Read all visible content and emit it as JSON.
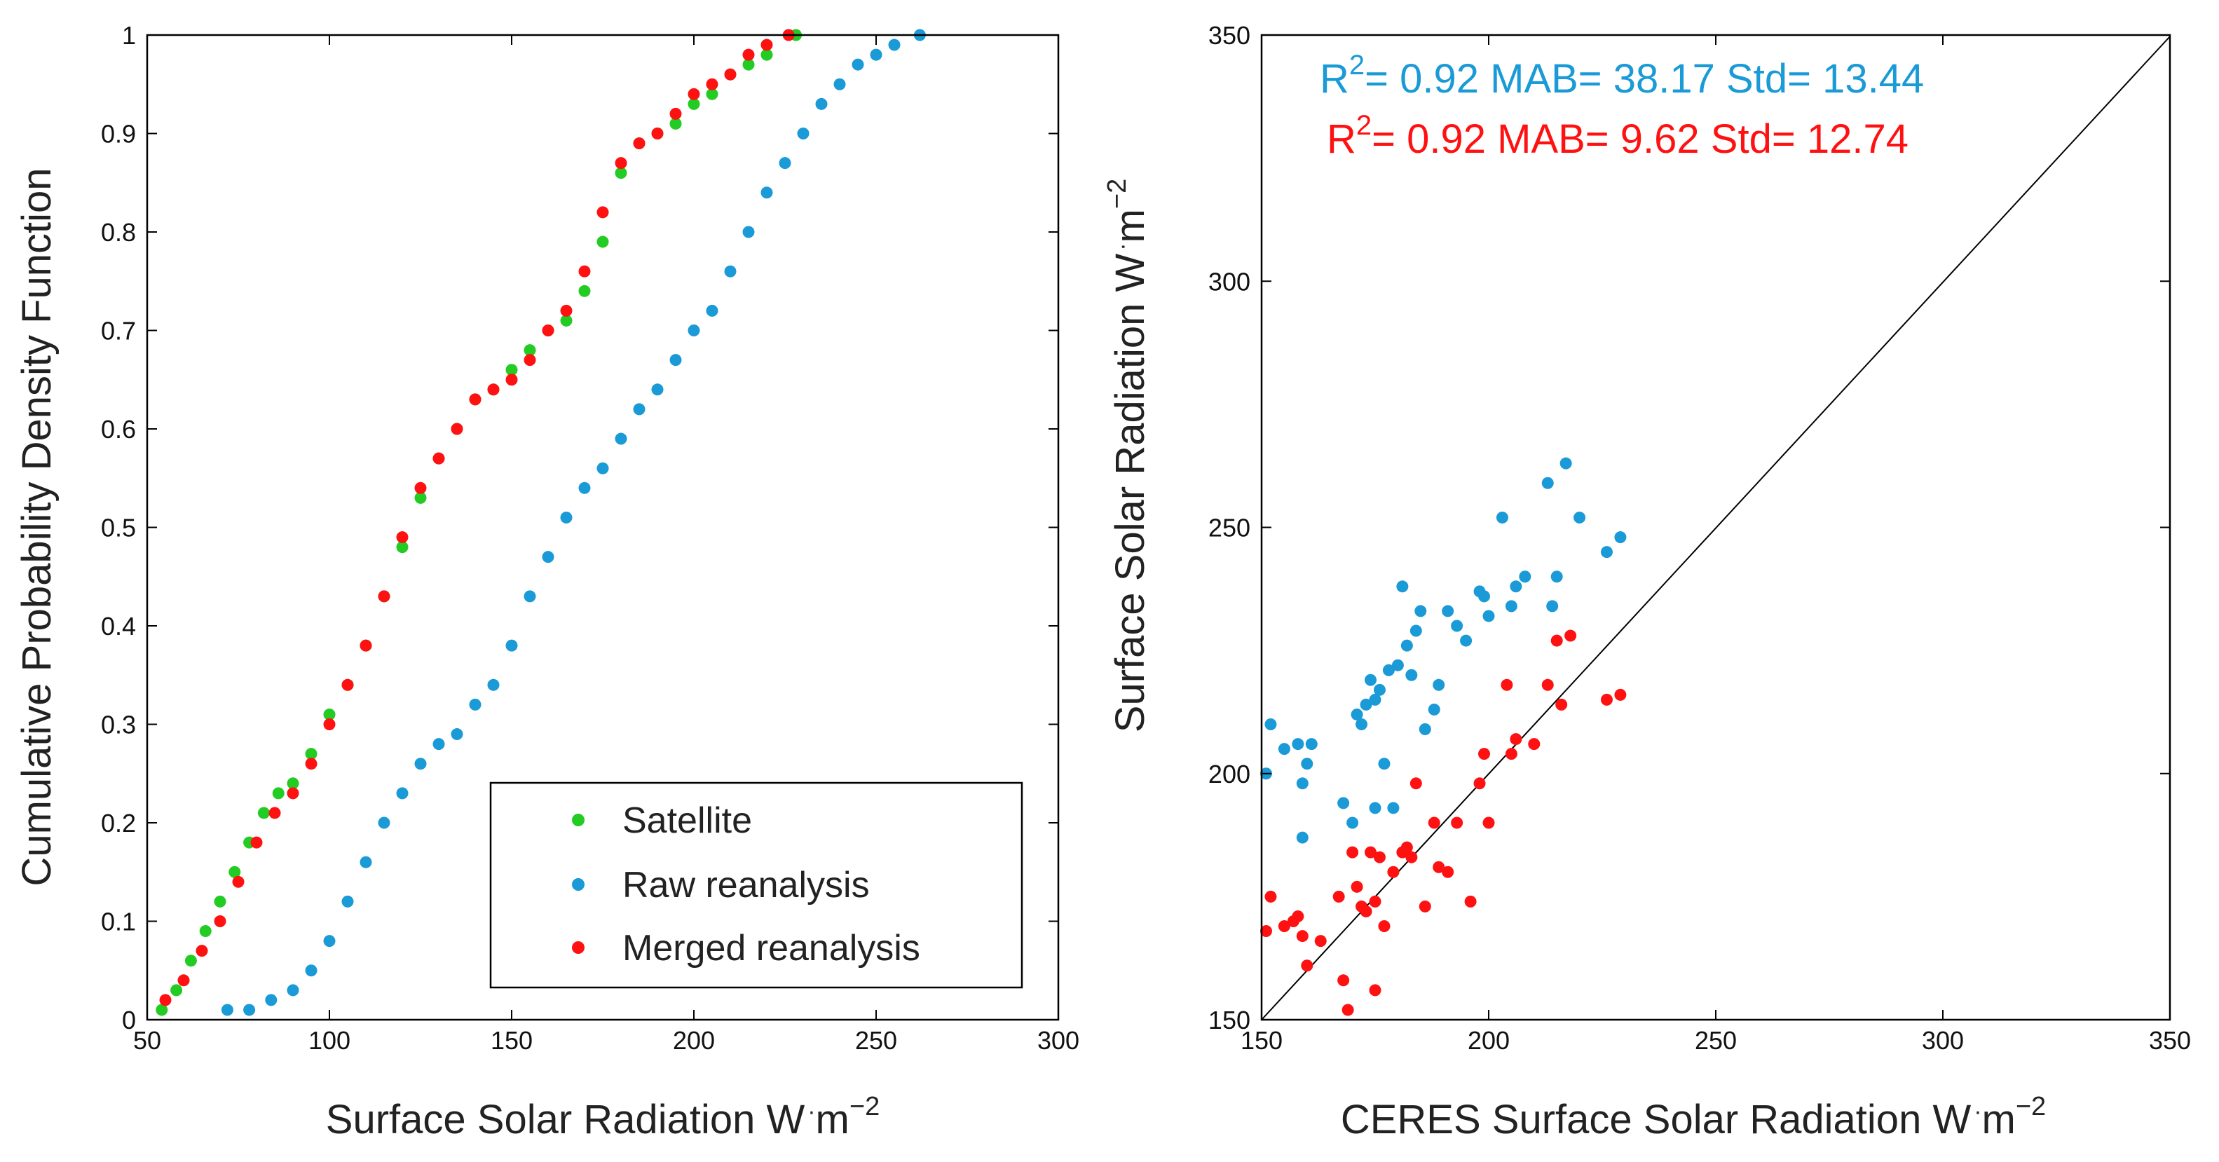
{
  "chart_data": [
    {
      "type": "scatter",
      "subtype": "cumulative-distribution",
      "title": "",
      "xlabel": "Surface Solar Radiation W",
      "xlabel_unit_dot": "·",
      "xlabel_unit_base": "m",
      "xlabel_unit_exp": "−2",
      "ylabel": "Cumulative Probability Density Function",
      "xlim": [
        50,
        300
      ],
      "ylim": [
        0,
        1
      ],
      "xticks": [
        "50",
        "100",
        "150",
        "200",
        "250",
        "300"
      ],
      "yticks": [
        "0",
        "0.1",
        "0.2",
        "0.3",
        "0.4",
        "0.5",
        "0.6",
        "0.7",
        "0.8",
        "0.9",
        "1"
      ],
      "grid": false,
      "legend": {
        "position": "bottom-right",
        "entries": [
          "Satellite",
          "Raw reanalysis",
          "Merged reanalysis"
        ]
      },
      "series": [
        {
          "name": "Satellite",
          "color": "#22cc22",
          "x": [
            54,
            58,
            62,
            66,
            70,
            74,
            78,
            82,
            86,
            90,
            95,
            100,
            105,
            110,
            115,
            120,
            125,
            130,
            135,
            140,
            145,
            150,
            155,
            160,
            165,
            170,
            175,
            180,
            185,
            190,
            195,
            200,
            205,
            210,
            215,
            220,
            228
          ],
          "y": [
            0.01,
            0.03,
            0.06,
            0.09,
            0.12,
            0.15,
            0.18,
            0.21,
            0.23,
            0.24,
            0.27,
            0.31,
            0.34,
            0.38,
            0.43,
            0.48,
            0.53,
            0.57,
            0.6,
            0.63,
            0.64,
            0.66,
            0.68,
            0.7,
            0.71,
            0.74,
            0.79,
            0.86,
            0.89,
            0.9,
            0.91,
            0.93,
            0.94,
            0.96,
            0.97,
            0.98,
            1.0
          ]
        },
        {
          "name": "Raw reanalysis",
          "color": "#1a9ad6",
          "x": [
            72,
            78,
            84,
            90,
            95,
            100,
            105,
            110,
            115,
            120,
            125,
            130,
            135,
            140,
            145,
            150,
            155,
            160,
            165,
            170,
            175,
            180,
            185,
            190,
            195,
            200,
            205,
            210,
            215,
            220,
            225,
            230,
            235,
            240,
            245,
            250,
            255,
            262
          ],
          "y": [
            0.01,
            0.01,
            0.02,
            0.03,
            0.05,
            0.08,
            0.12,
            0.16,
            0.2,
            0.23,
            0.26,
            0.28,
            0.29,
            0.32,
            0.34,
            0.38,
            0.43,
            0.47,
            0.51,
            0.54,
            0.56,
            0.59,
            0.62,
            0.64,
            0.67,
            0.7,
            0.72,
            0.76,
            0.8,
            0.84,
            0.87,
            0.9,
            0.93,
            0.95,
            0.97,
            0.98,
            0.99,
            1.0
          ]
        },
        {
          "name": "Merged reanalysis",
          "color": "#ff1111",
          "x": [
            55,
            60,
            65,
            70,
            75,
            80,
            85,
            90,
            95,
            100,
            105,
            110,
            115,
            120,
            125,
            130,
            135,
            140,
            145,
            150,
            155,
            160,
            165,
            170,
            175,
            180,
            185,
            190,
            195,
            200,
            205,
            210,
            215,
            220,
            226
          ],
          "y": [
            0.02,
            0.04,
            0.07,
            0.1,
            0.14,
            0.18,
            0.21,
            0.23,
            0.26,
            0.3,
            0.34,
            0.38,
            0.43,
            0.49,
            0.54,
            0.57,
            0.6,
            0.63,
            0.64,
            0.65,
            0.67,
            0.7,
            0.72,
            0.76,
            0.82,
            0.87,
            0.89,
            0.9,
            0.92,
            0.94,
            0.95,
            0.96,
            0.98,
            0.99,
            1.0
          ]
        }
      ]
    },
    {
      "type": "scatter",
      "title": "",
      "xlabel": "CERES Surface Solar Radiation W",
      "xlabel_unit_dot": "·",
      "xlabel_unit_base": "m",
      "xlabel_unit_exp": "−2",
      "ylabel": "Surface Solar Radiation W",
      "ylabel_unit_dot": "·",
      "ylabel_unit_base": "m",
      "ylabel_unit_exp": "−2",
      "xlim": [
        150,
        350
      ],
      "ylim": [
        150,
        350
      ],
      "xticks": [
        "150",
        "200",
        "250",
        "300",
        "350"
      ],
      "yticks": [
        "150",
        "200",
        "250",
        "300",
        "350"
      ],
      "grid": false,
      "reference_line": "1:1",
      "annotations": [
        {
          "r_label": "R",
          "r_exp": "2",
          "text": "= 0.92 MAB= 38.17 Std= 13.44",
          "color": "#1a9ad6"
        },
        {
          "r_label": "R",
          "r_exp": "2",
          "text": "= 0.92 MAB= 9.62 Std= 12.74",
          "color": "#ff1111"
        }
      ],
      "series": [
        {
          "name": "Raw reanalysis",
          "color": "#1a9ad6",
          "x": [
            151,
            152,
            155,
            158,
            159,
            159,
            160,
            161,
            168,
            170,
            171,
            172,
            173,
            174,
            175,
            175,
            176,
            177,
            178,
            179,
            180,
            181,
            182,
            183,
            184,
            185,
            186,
            188,
            189,
            191,
            193,
            195,
            198,
            199,
            200,
            203,
            205,
            206,
            208,
            213,
            214,
            215,
            217,
            220,
            226,
            229
          ],
          "y": [
            200,
            210,
            205,
            206,
            198,
            187,
            202,
            206,
            194,
            190,
            212,
            210,
            214,
            219,
            215,
            193,
            217,
            202,
            221,
            193,
            222,
            238,
            226,
            220,
            229,
            233,
            209,
            213,
            218,
            233,
            230,
            227,
            237,
            236,
            232,
            252,
            234,
            238,
            240,
            259,
            234,
            240,
            263,
            252,
            245,
            248
          ]
        },
        {
          "name": "Merged reanalysis",
          "color": "#ff1111",
          "x": [
            151,
            152,
            155,
            157,
            158,
            159,
            160,
            163,
            167,
            168,
            169,
            170,
            171,
            172,
            173,
            174,
            175,
            175,
            176,
            177,
            179,
            181,
            182,
            183,
            184,
            186,
            188,
            189,
            191,
            193,
            196,
            198,
            199,
            200,
            204,
            205,
            206,
            210,
            213,
            215,
            216,
            218,
            226,
            229
          ],
          "y": [
            168,
            175,
            169,
            170,
            171,
            167,
            161,
            166,
            175,
            158,
            152,
            184,
            177,
            173,
            172,
            184,
            156,
            174,
            183,
            169,
            180,
            184,
            185,
            183,
            198,
            173,
            190,
            181,
            180,
            190,
            174,
            198,
            204,
            190,
            218,
            204,
            207,
            206,
            218,
            227,
            214,
            228,
            215,
            216
          ]
        }
      ]
    }
  ]
}
